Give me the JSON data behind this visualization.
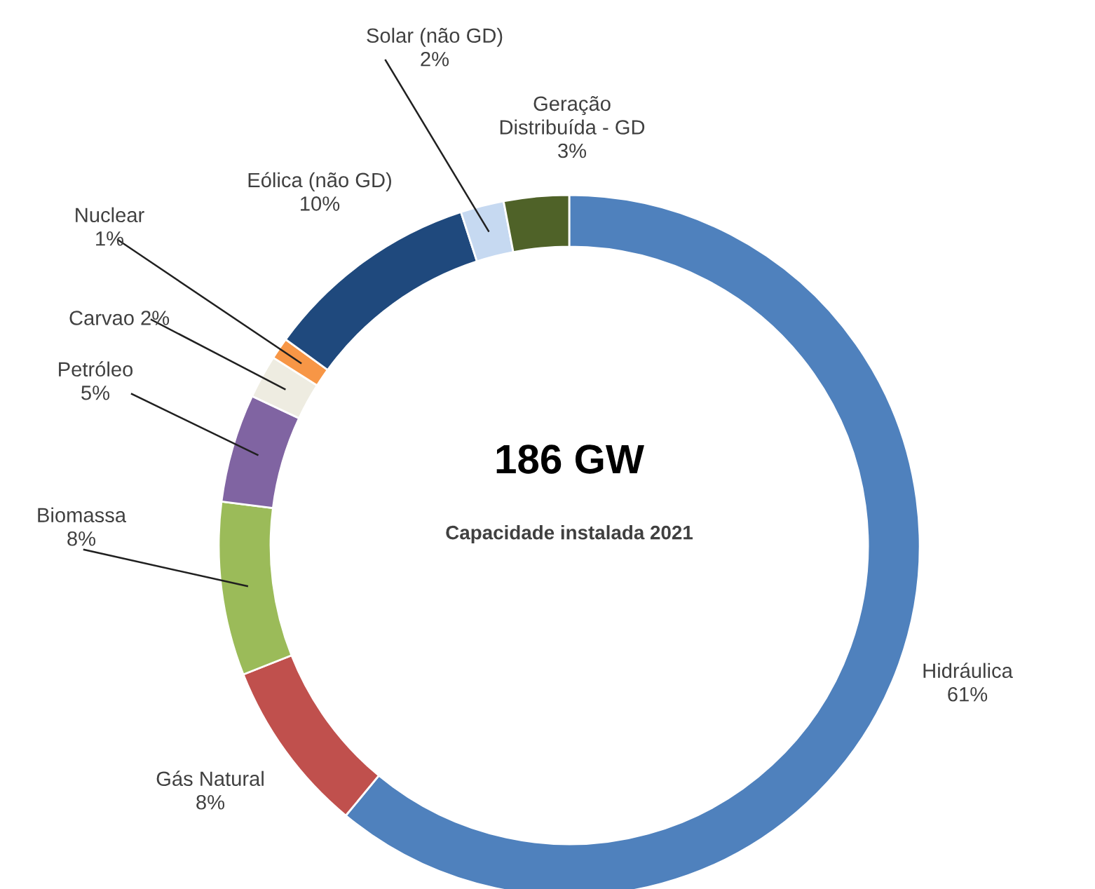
{
  "chart_data": {
    "type": "donut",
    "categories": [
      "Hidráulica",
      "Gás Natural",
      "Biomassa",
      "Petróleo",
      "Carvao",
      "Nuclear",
      "Eólica (não GD)",
      "Solar (não GD)",
      "Geração Distribuída - GD"
    ],
    "values": [
      61,
      8,
      8,
      5,
      2,
      1,
      10,
      2,
      3
    ],
    "value_labels": [
      "61%",
      "8%",
      "8%",
      "5%",
      "2%",
      "1%",
      "10%",
      "2%",
      "3%"
    ],
    "colors": [
      "#4f81bd",
      "#c0504d",
      "#9bbb59",
      "#8064a2",
      "#eeece1",
      "#f79646",
      "#1f497d",
      "#c6d9f1",
      "#4f6228"
    ],
    "title": "186 GW",
    "subtitle": "Capacidade instalada 2021",
    "legend": false
  }
}
